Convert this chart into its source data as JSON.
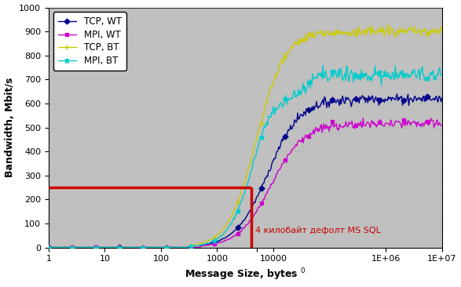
{
  "title": "",
  "xlabel": "Message Size, bytes",
  "ylabel": "Bandwidth, Mbit/s",
  "xlim": [
    1,
    10000000.0
  ],
  "ylim": [
    0,
    1000
  ],
  "bg_color": "#c0c0c0",
  "annotation_text": "4 килобайт дефолт MS SQL",
  "annotation_color": "#cc0000",
  "red_line_x": 4096,
  "red_line_y": 250,
  "legend_labels": [
    "TCP, WT",
    "MPI, WT",
    "TCP, BT",
    "MPI, BT"
  ],
  "series_colors": [
    "#00008b",
    "#cc00cc",
    "#cccc00",
    "#00cccc"
  ],
  "yticks": [
    0,
    100,
    200,
    300,
    400,
    500,
    600,
    700,
    800,
    900,
    1000
  ],
  "xtick_positions": [
    1,
    10,
    100,
    1000,
    5000,
    10000,
    1000000,
    10000000
  ],
  "xtick_labels": [
    "1",
    "10",
    "100",
    "1000",
    "",
    "10000",
    "1E+06",
    "1E+07"
  ],
  "figsize": [
    5.87,
    3.66
  ],
  "dpi": 100
}
